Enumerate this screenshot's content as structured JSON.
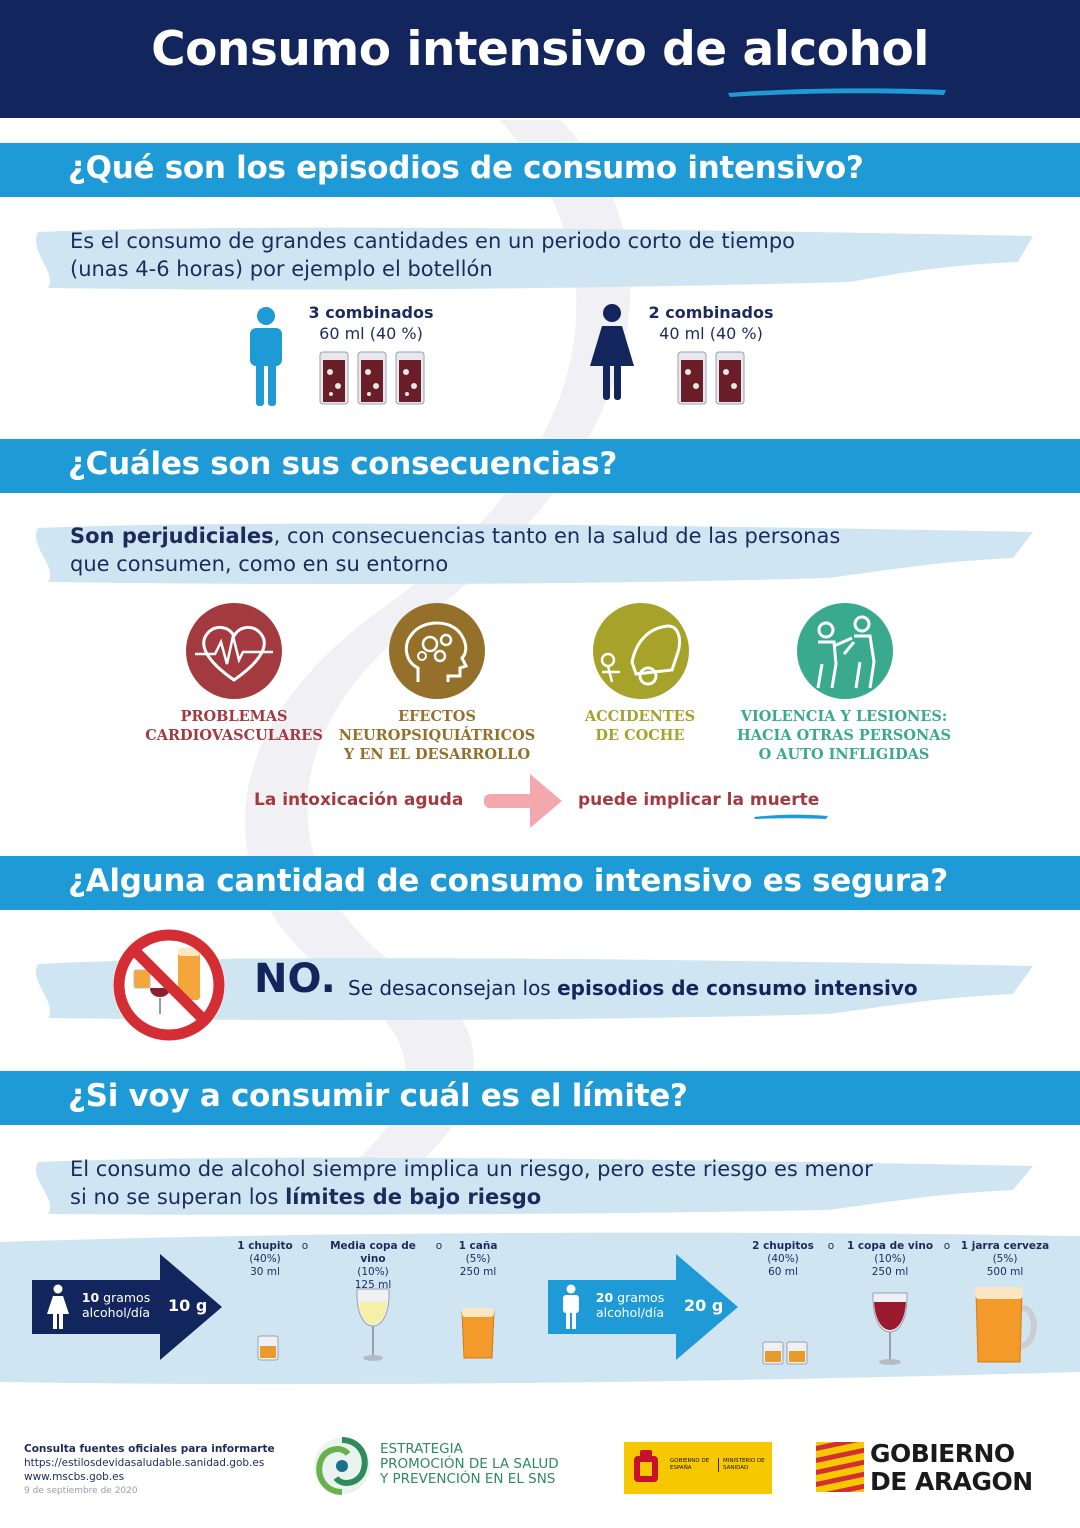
{
  "header": {
    "title_prefix": "Consumo intensivo de ",
    "title_emph": "alcohol"
  },
  "section1": {
    "title": "¿Qué son los episodios de consumo intensivo?",
    "desc_line1": "Es el consumo de grandes cantidades en un periodo corto de tiempo",
    "desc_line2": "(unas 4-6 horas) por ejemplo el botellón",
    "man": {
      "amount": "3 combinados",
      "detail": "60 ml (40 %)",
      "glasses": 3
    },
    "woman": {
      "amount": "2 combinados",
      "detail": "40 ml (40 %)",
      "glasses": 2
    }
  },
  "section2": {
    "title": "¿Cuáles son sus consecuencias?",
    "desc_bold": "Son perjudiciales",
    "desc_rest1": ", con consecuencias tanto en la salud de las personas",
    "desc_line2": "que consumen, como en su entorno",
    "items": [
      {
        "line1": "PROBLEMAS",
        "line2": "CARDIOVASCULARES",
        "line3": "",
        "color": "#a33a40",
        "icon": "heart-pulse-icon"
      },
      {
        "line1": "EFECTOS",
        "line2": "NEUROPSIQUIÁTRICOS",
        "line3": "Y EN EL DESARROLLO",
        "color": "#94702a",
        "icon": "brain-gears-icon"
      },
      {
        "line1": "ACCIDENTES",
        "line2": "DE COCHE",
        "line3": "",
        "color": "#a7a22a",
        "icon": "car-crash-icon"
      },
      {
        "line1": "VIOLENCIA Y LESIONES:",
        "line2": "HACIA OTRAS PERSONAS",
        "line3": "O AUTO INFLIGIDAS",
        "color": "#3aaa8e",
        "icon": "violence-icon"
      }
    ],
    "intox_left": "La intoxicación aguda",
    "intox_right_prefix": "puede implicar la ",
    "intox_right_emph": "muerte"
  },
  "section3": {
    "title": "¿Alguna cantidad de consumo intensivo es segura?",
    "answer": "NO.",
    "text_prefix": "Se desaconsejan los ",
    "text_bold": "episodios de consumo intensivo"
  },
  "section4": {
    "title": "¿Si voy a consumir cuál es el límite?",
    "desc_line1": "El consumo de alcohol siempre implica un riesgo, pero este riesgo es menor",
    "desc_prefix2": "si no se superan los ",
    "desc_bold2": "límites de bajo riesgo",
    "woman": {
      "grams_bold": "10",
      "grams_text": " gramos",
      "per_day": "alcohol/día",
      "total": "10 g",
      "drinks": [
        {
          "name": "1 chupito",
          "pct": "(40%)",
          "vol": "30 ml"
        },
        {
          "name": "Media copa de vino",
          "pct": "(10%)",
          "vol": "125 ml"
        },
        {
          "name": "1 caña",
          "pct": "(5%)",
          "vol": "250 ml"
        }
      ]
    },
    "man": {
      "grams_bold": "20",
      "grams_text": " gramos",
      "per_day": "alcohol/día",
      "total": "20 g",
      "drinks": [
        {
          "name": "2 chupitos",
          "pct": "(40%)",
          "vol": "60 ml"
        },
        {
          "name": "1 copa de vino",
          "pct": "(10%)",
          "vol": "250 ml"
        },
        {
          "name": "1 jarra cerveza",
          "pct": "(5%)",
          "vol": "500 ml"
        }
      ]
    },
    "or": "o"
  },
  "footer": {
    "consult": "Consulta fuentes oficiales para informarte",
    "url1": "https://estilosdevidasaludable.sanidad.gob.es",
    "url2": "www.mscbs.gob.es",
    "date": "9 de septiembre de 2020",
    "strategy_line1": "ESTRATEGIA",
    "strategy_line2": "PROMOCIÓN DE LA SALUD",
    "strategy_line3": "Y PREVENCIÓN EN EL SNS",
    "gov_left": "GOBIERNO DE ESPAÑA",
    "gov_right": "MINISTERIO DE SANIDAD",
    "aragon_line1": "GOBIERNO",
    "aragon_line2": "DE ARAGON"
  },
  "colors": {
    "navy": "#12255c",
    "bar_blue": "#1e9ad6",
    "light_blue": "#cfe6f2",
    "red": "#a33a40",
    "gold": "#94702a",
    "olive": "#a7a22a",
    "teal": "#3aaa8e"
  }
}
